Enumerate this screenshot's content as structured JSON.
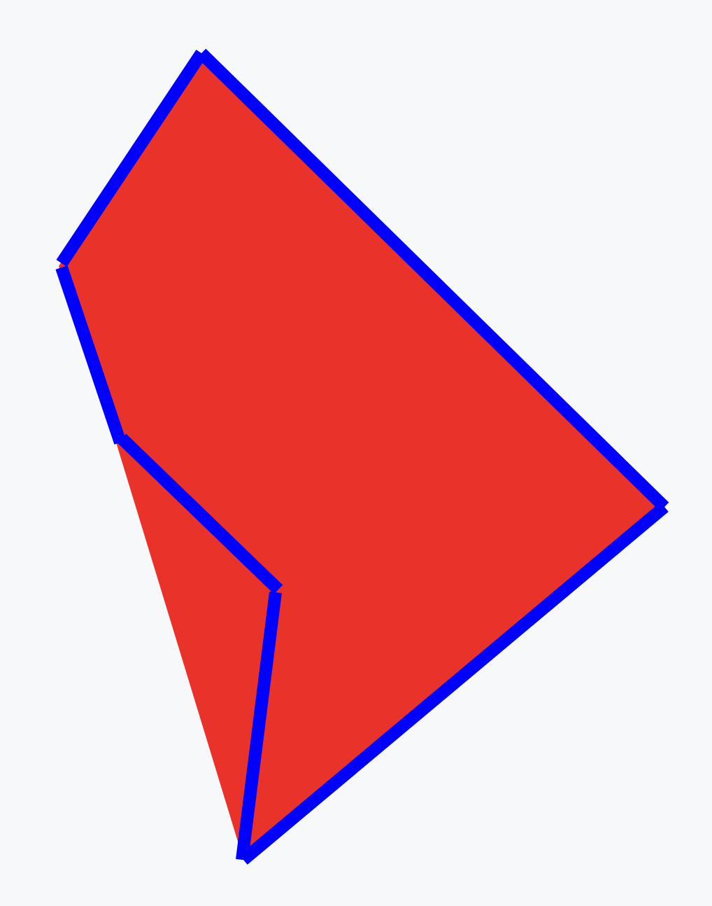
{
  "shape": {
    "fill_color": "#e9322a",
    "stroke_color": "#0000ff",
    "background_color": "#f7f8fa"
  }
}
